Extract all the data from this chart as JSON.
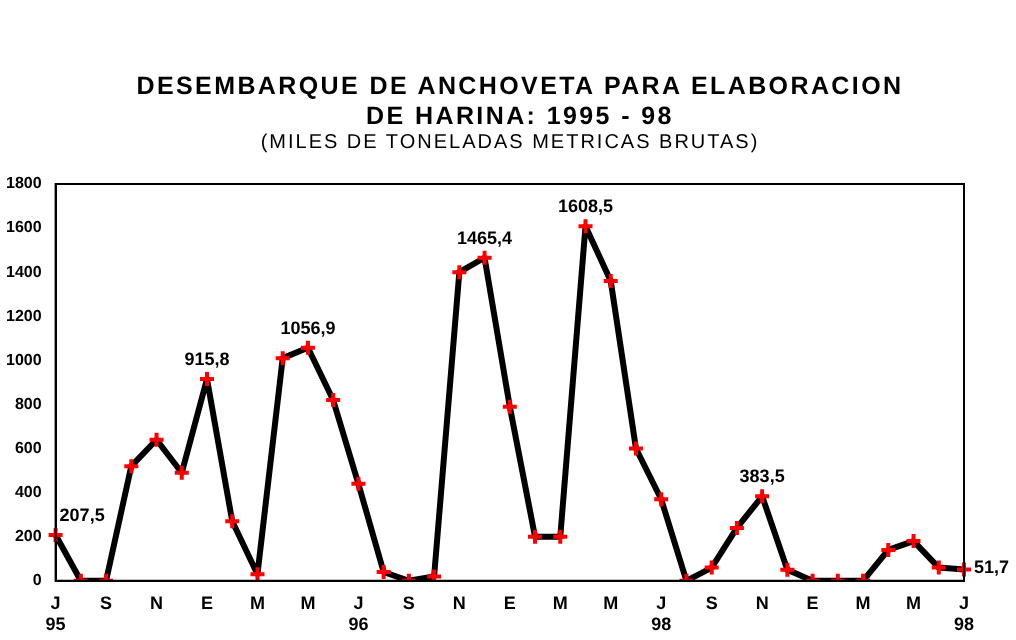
{
  "chart_data": {
    "type": "line",
    "title": "DESEMBARQUE DE ANCHOVETA PARA ELABORACION DE HARINA: 1995 - 98",
    "subtitle": "(MILES DE TONELADAS METRICAS BRUTAS)",
    "categories": [
      "J\n95",
      null,
      "S",
      null,
      "N",
      null,
      "E",
      null,
      "M",
      null,
      "M",
      null,
      "J\n96",
      null,
      "S",
      null,
      "N",
      null,
      "E",
      null,
      "M",
      null,
      "M",
      null,
      "J\n98",
      null,
      "S",
      null,
      "N",
      null,
      "E",
      null,
      "M",
      null,
      "M",
      null,
      "J\n98"
    ],
    "series": [
      {
        "color": "#000000",
        "values": [
          207.5,
          0,
          0,
          520,
          640,
          490,
          915.8,
          270,
          30,
          1010,
          1056.9,
          820,
          440,
          40,
          0,
          20,
          1400,
          1465.4,
          790,
          200,
          200,
          1608.5,
          1360,
          600,
          370,
          0,
          60,
          240,
          383.5,
          50,
          0,
          0,
          0,
          140,
          180,
          60,
          51.7
        ],
        "value_labels": [
          "207,5",
          null,
          null,
          null,
          null,
          null,
          "915,8",
          null,
          null,
          null,
          "1056,9",
          null,
          null,
          null,
          null,
          null,
          null,
          "1465,4",
          null,
          null,
          null,
          "1608,5",
          null,
          null,
          null,
          null,
          null,
          null,
          "383,5",
          null,
          null,
          null,
          null,
          null,
          null,
          null,
          "51,7"
        ]
      }
    ],
    "ylim": [
      0,
      1800
    ],
    "yticks": [
      0,
      200,
      400,
      600,
      800,
      1000,
      1200,
      1400,
      1600,
      1800
    ],
    "grid": false,
    "legend": false,
    "marker": "cross",
    "line_style": "solid"
  }
}
